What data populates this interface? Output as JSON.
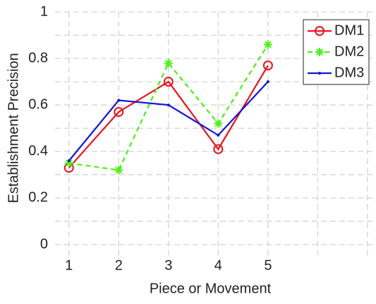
{
  "chart_data": {
    "type": "line",
    "xlabel": "Piece or Movement",
    "ylabel": "Establishment Precision",
    "x": [
      1,
      2,
      3,
      4,
      5
    ],
    "series": [
      {
        "name": "DM1",
        "color": "#e8141c",
        "marker": "circle",
        "linestyle": "solid",
        "values": [
          0.33,
          0.57,
          0.7,
          0.41,
          0.77
        ]
      },
      {
        "name": "DM2",
        "color": "#4cf018",
        "marker": "asterisk",
        "linestyle": "dashed",
        "values": [
          0.35,
          0.32,
          0.78,
          0.52,
          0.86
        ]
      },
      {
        "name": "DM3",
        "color": "#1414d4",
        "marker": "point",
        "linestyle": "solid",
        "values": [
          0.36,
          0.62,
          0.6,
          0.47,
          0.7
        ]
      }
    ],
    "xlim": [
      0.72,
      7.1
    ],
    "xticks": [
      1,
      2,
      3,
      4,
      5
    ],
    "xminor": [
      6,
      7
    ],
    "ylim": [
      -0.05,
      1
    ],
    "yticks": [
      0,
      0.2,
      0.4,
      0.6,
      0.8,
      1
    ],
    "yminor": [
      0.1,
      0.3,
      0.5,
      0.7,
      0.9
    ],
    "grid": true,
    "legend": "top-right"
  }
}
